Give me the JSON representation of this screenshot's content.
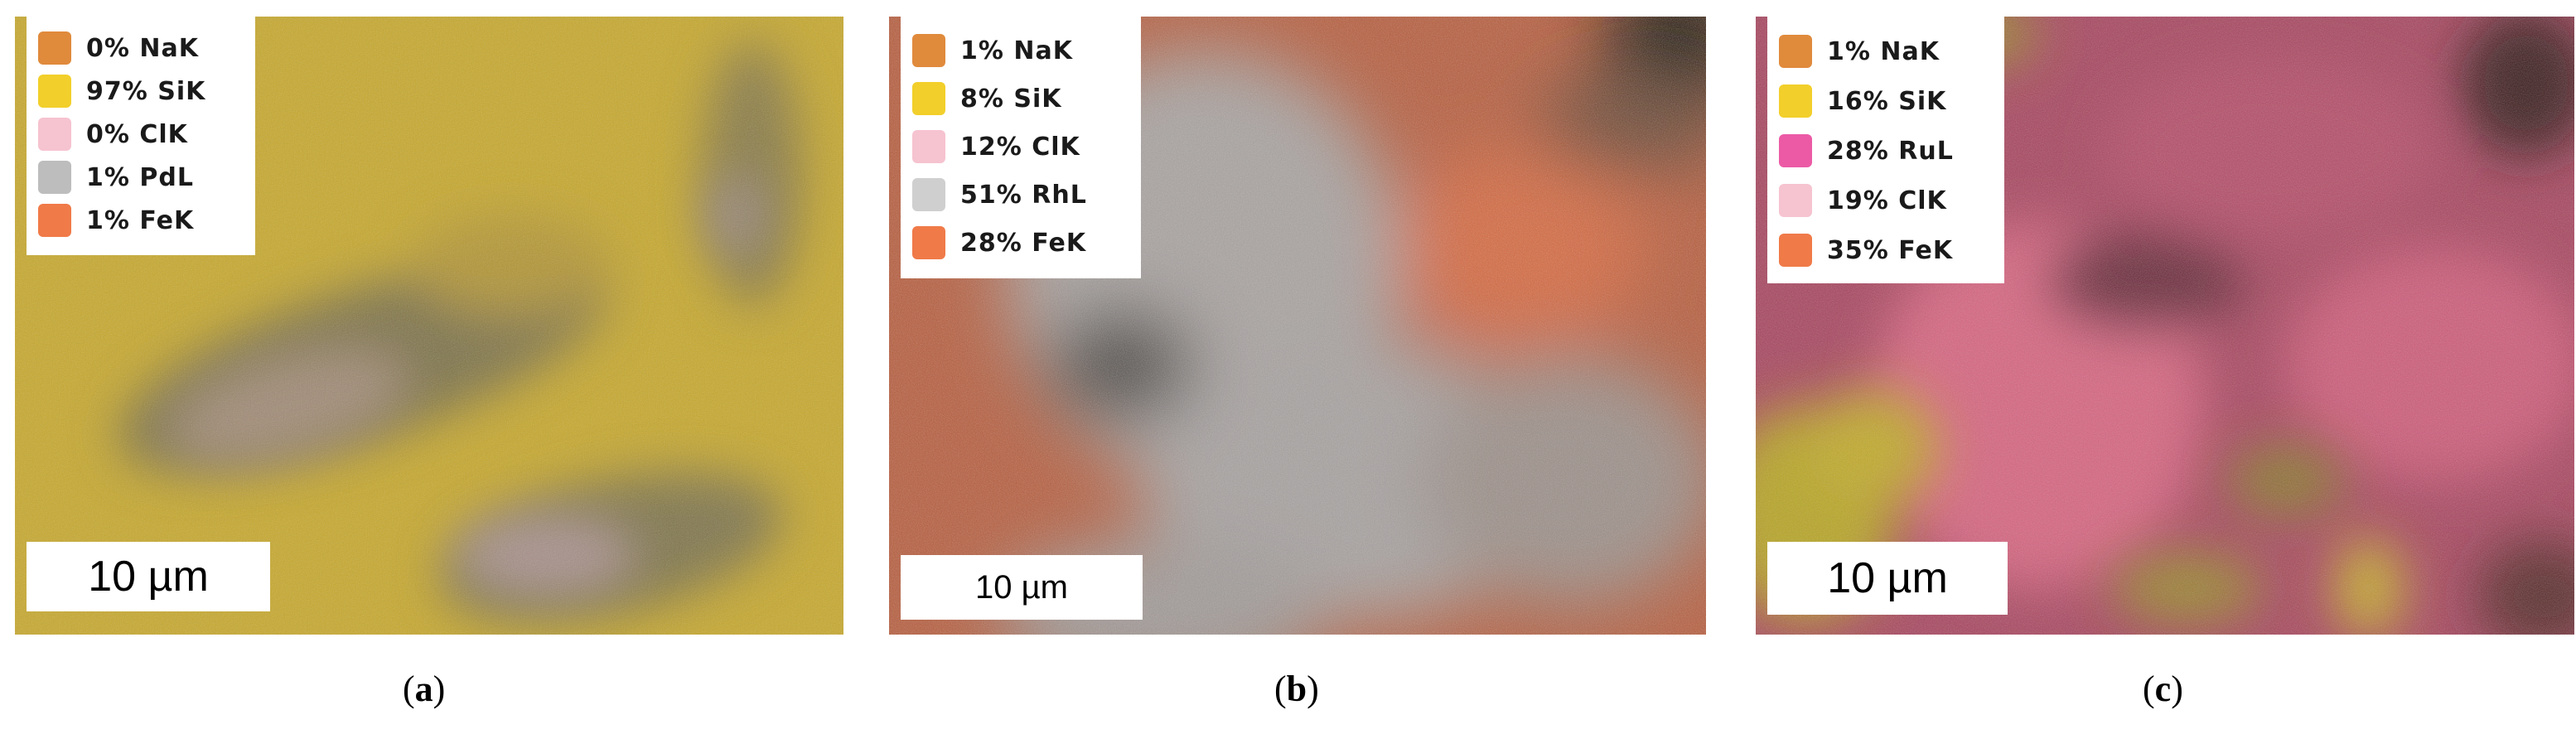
{
  "panels": [
    {
      "id": "a",
      "legend": [
        {
          "label": "0% NaK",
          "color": "#e08a3c"
        },
        {
          "label": "97% SiK",
          "color": "#f2cf2a"
        },
        {
          "label": "0% ClK",
          "color": "#f6c3d0"
        },
        {
          "label": "1% PdL",
          "color": "#bdbdbd"
        },
        {
          "label": "1% FeK",
          "color": "#f07a48"
        }
      ],
      "scale_label": "10 µm",
      "caption": "a"
    },
    {
      "id": "b",
      "legend": [
        {
          "label": "1% NaK",
          "color": "#e08a3c"
        },
        {
          "label": "8% SiK",
          "color": "#f2cf2a"
        },
        {
          "label": "12% ClK",
          "color": "#f6c3d0"
        },
        {
          "label": "51% RhL",
          "color": "#cfcfcf"
        },
        {
          "label": "28% FeK",
          "color": "#f07a48"
        }
      ],
      "scale_label": "10 µm",
      "caption": "b"
    },
    {
      "id": "c",
      "legend": [
        {
          "label": "1% NaK",
          "color": "#e08a3c"
        },
        {
          "label": "16% SiK",
          "color": "#f2cf2a"
        },
        {
          "label": "28% RuL",
          "color": "#ec5aa6"
        },
        {
          "label": "19% ClK",
          "color": "#f6c3d0"
        },
        {
          "label": "35% FeK",
          "color": "#f07a48"
        }
      ],
      "scale_label": "10 µm",
      "caption": "c"
    }
  ]
}
